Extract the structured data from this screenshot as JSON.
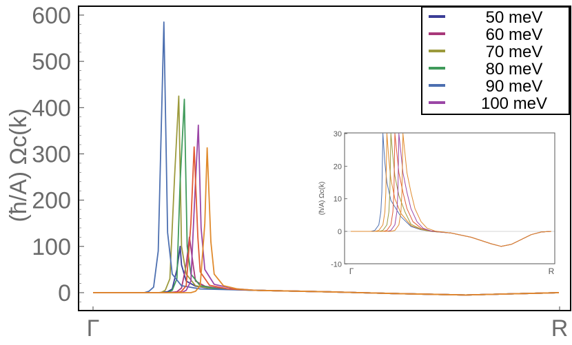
{
  "chart_data": [
    {
      "type": "line",
      "title": "",
      "xlabel": "",
      "ylabel": "(ħ/A) Ωc(k)",
      "x_ticks": [
        "Γ",
        "R"
      ],
      "y_ticks": [
        0,
        100,
        200,
        300,
        400,
        500,
        600
      ],
      "xlim": [
        0,
        1
      ],
      "ylim": [
        -35,
        620
      ],
      "grid": false,
      "legend": "top-right",
      "series": [
        {
          "name": "50 meV",
          "color": "#3b3d96",
          "x": [
            0,
            0.14,
            0.16,
            0.17,
            0.18,
            0.187,
            0.19,
            0.2,
            0.22,
            0.26,
            0.35,
            0.5,
            0.65,
            0.75,
            0.8,
            0.88,
            0.96,
            1.0
          ],
          "y": [
            0,
            0,
            2,
            8,
            50,
            100,
            60,
            25,
            14,
            8,
            5,
            2,
            -2,
            -4,
            -5,
            -3,
            -1,
            0
          ]
        },
        {
          "name": "60 meV",
          "color": "#a8387a",
          "x": [
            0,
            0.16,
            0.18,
            0.19,
            0.2,
            0.207,
            0.215,
            0.22,
            0.24,
            0.28,
            0.35,
            0.5,
            0.65,
            0.75,
            0.8,
            0.88,
            0.96,
            1.0
          ],
          "y": [
            0,
            0,
            2,
            10,
            60,
            120,
            60,
            25,
            14,
            8,
            5,
            2,
            -2,
            -4,
            -5,
            -3,
            -1,
            0
          ]
        },
        {
          "name": "70 meV",
          "color": "#9c9a3c",
          "x": [
            0,
            0.145,
            0.155,
            0.165,
            0.175,
            0.184,
            0.19,
            0.2,
            0.22,
            0.26,
            0.35,
            0.5,
            0.65,
            0.75,
            0.8,
            0.88,
            0.96,
            1.0
          ],
          "y": [
            0,
            0,
            5,
            30,
            250,
            425,
            100,
            40,
            15,
            8,
            5,
            2,
            -2,
            -4,
            -5,
            -3,
            -1,
            0
          ]
        },
        {
          "name": "80 meV",
          "color": "#3f9a5a",
          "x": [
            0,
            0.16,
            0.17,
            0.18,
            0.187,
            0.196,
            0.202,
            0.21,
            0.23,
            0.27,
            0.35,
            0.5,
            0.65,
            0.75,
            0.8,
            0.88,
            0.96,
            1.0
          ],
          "y": [
            0,
            0,
            5,
            30,
            240,
            418,
            100,
            40,
            15,
            8,
            5,
            2,
            -2,
            -4,
            -5,
            -3,
            -1,
            0
          ]
        },
        {
          "name": "90 meV",
          "color": "#4c6fb0",
          "x": [
            0,
            0.11,
            0.12,
            0.13,
            0.14,
            0.152,
            0.16,
            0.17,
            0.19,
            0.23,
            0.35,
            0.5,
            0.65,
            0.75,
            0.8,
            0.88,
            0.96,
            1.0
          ],
          "y": [
            0,
            0,
            3,
            12,
            90,
            585,
            130,
            40,
            15,
            8,
            5,
            2,
            -2,
            -4,
            -5,
            -3,
            -1,
            0
          ]
        },
        {
          "name": "100 meV",
          "color": "#9b46a6",
          "x": [
            0,
            0.19,
            0.2,
            0.21,
            0.218,
            0.226,
            0.232,
            0.24,
            0.26,
            0.3,
            0.35,
            0.5,
            0.65,
            0.75,
            0.8,
            0.88,
            0.96,
            1.0
          ],
          "y": [
            0,
            0,
            5,
            25,
            200,
            362,
            140,
            50,
            18,
            9,
            5,
            2,
            -2,
            -4,
            -5,
            -3,
            -1,
            0
          ]
        },
        {
          "color": "#e15a34",
          "x": [
            0,
            0.18,
            0.19,
            0.2,
            0.21,
            0.217,
            0.225,
            0.23,
            0.25,
            0.29,
            0.35,
            0.5,
            0.65,
            0.75,
            0.8,
            0.88,
            0.96,
            1.0
          ],
          "y": [
            0,
            0,
            3,
            15,
            150,
            315,
            120,
            45,
            16,
            8,
            5,
            2,
            -2,
            -4,
            -5,
            -3,
            -1,
            0
          ]
        },
        {
          "color": "#e08a2c",
          "x": [
            0,
            0.21,
            0.22,
            0.23,
            0.24,
            0.245,
            0.253,
            0.26,
            0.28,
            0.31,
            0.35,
            0.5,
            0.65,
            0.75,
            0.8,
            0.88,
            0.96,
            1.0
          ],
          "y": [
            0,
            0,
            3,
            15,
            150,
            313,
            110,
            40,
            15,
            8,
            5,
            2,
            -2,
            -4,
            -5,
            -3,
            -1,
            0
          ]
        }
      ]
    },
    {
      "type": "line",
      "title": "",
      "xlabel": "",
      "ylabel": "(ħ/A) Ωc(k)",
      "x_ticks": [
        "Γ",
        "R"
      ],
      "y_ticks": [
        -10,
        0,
        10,
        20,
        30
      ],
      "xlim": [
        0,
        1
      ],
      "ylim": [
        -10,
        30
      ],
      "grid": false,
      "series": [
        {
          "color": "#4c6fb0",
          "x": [
            0,
            0.1,
            0.12,
            0.14,
            0.15,
            0.155,
            0.16,
            0.17,
            0.18,
            0.2,
            0.25,
            0.3,
            0.35,
            0.4,
            0.5,
            0.6,
            0.7,
            0.75,
            0.8,
            0.85,
            0.9,
            0.95,
            1.0
          ],
          "y": [
            0,
            0,
            0.3,
            2,
            6,
            12,
            30,
            21,
            15,
            9.5,
            4.5,
            1.5,
            0.5,
            0,
            -0.5,
            -1.8,
            -3.8,
            -4.6,
            -4,
            -2.5,
            -1,
            -0.2,
            0
          ]
        },
        {
          "color": "#e08a2c",
          "x": [
            0,
            0.12,
            0.14,
            0.16,
            0.17,
            0.175,
            0.18,
            0.19,
            0.2,
            0.22,
            0.25,
            0.3,
            0.35,
            0.4,
            0.5,
            0.6,
            0.7,
            0.75,
            0.8,
            0.85,
            0.9,
            0.95,
            1.0
          ],
          "y": [
            0,
            0,
            0.3,
            2,
            6,
            12,
            30,
            22,
            16,
            10,
            5.5,
            1.8,
            0.6,
            0,
            -0.5,
            -1.8,
            -3.8,
            -4.6,
            -4,
            -2.5,
            -1,
            -0.2,
            0
          ]
        },
        {
          "color": "#9c9a3c",
          "x": [
            0,
            0.14,
            0.16,
            0.18,
            0.19,
            0.195,
            0.2,
            0.21,
            0.22,
            0.24,
            0.27,
            0.3,
            0.35,
            0.4,
            0.5,
            0.6,
            0.7,
            0.75,
            0.8,
            0.85,
            0.9,
            0.95,
            1.0
          ],
          "y": [
            0,
            0,
            0.3,
            2,
            6,
            12,
            30,
            23,
            17,
            11,
            6,
            2.2,
            0.7,
            0,
            -0.5,
            -1.8,
            -3.8,
            -4.6,
            -4,
            -2.5,
            -1,
            -0.2,
            0
          ]
        },
        {
          "color": "#e15a34",
          "x": [
            0,
            0.16,
            0.18,
            0.2,
            0.21,
            0.215,
            0.22,
            0.23,
            0.24,
            0.26,
            0.28,
            0.31,
            0.35,
            0.4,
            0.5,
            0.6,
            0.7,
            0.75,
            0.8,
            0.85,
            0.9,
            0.95,
            1.0
          ],
          "y": [
            0,
            0,
            0.3,
            2,
            6,
            12,
            30,
            24,
            18,
            12,
            7,
            3,
            1,
            0.1,
            -0.5,
            -1.8,
            -3.8,
            -4.6,
            -4,
            -2.5,
            -1,
            -0.2,
            0
          ]
        },
        {
          "color": "#9b46a6",
          "x": [
            0,
            0.18,
            0.2,
            0.22,
            0.23,
            0.235,
            0.24,
            0.25,
            0.26,
            0.28,
            0.3,
            0.33,
            0.36,
            0.4,
            0.5,
            0.6,
            0.7,
            0.75,
            0.8,
            0.85,
            0.9,
            0.95,
            1.0
          ],
          "y": [
            0,
            0,
            0.3,
            2,
            6,
            12,
            30,
            24,
            18,
            12,
            7,
            3,
            1,
            0.1,
            -0.5,
            -1.8,
            -3.8,
            -4.6,
            -4,
            -2.5,
            -1,
            -0.2,
            0
          ]
        },
        {
          "color": "#e08a2c",
          "x": [
            0,
            0.2,
            0.22,
            0.24,
            0.25,
            0.255,
            0.26,
            0.27,
            0.28,
            0.3,
            0.32,
            0.35,
            0.38,
            0.42,
            0.5,
            0.6,
            0.7,
            0.75,
            0.8,
            0.85,
            0.9,
            0.95,
            1.0
          ],
          "y": [
            0,
            0,
            0.3,
            2,
            6,
            12,
            30,
            24,
            18,
            12,
            7,
            3,
            1,
            0.1,
            -0.5,
            -1.8,
            -3.8,
            -4.6,
            -4,
            -2.5,
            -1,
            -0.2,
            0
          ]
        }
      ]
    }
  ]
}
